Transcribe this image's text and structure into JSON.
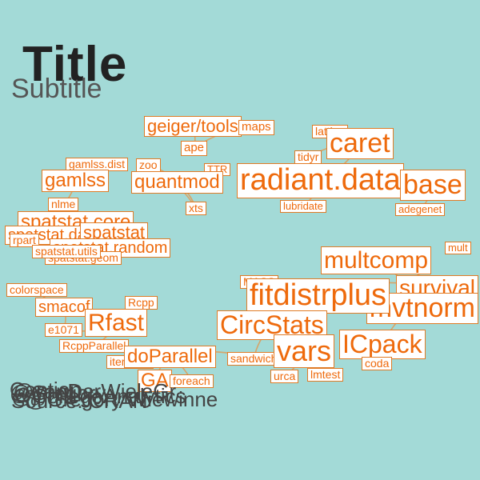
{
  "title": "Title",
  "subtitle": "Subtitle",
  "captions": [
    {
      "text": "@Gregory Wiewinne"
    },
    {
      "text": "@Gregory"
    },
    {
      "text": "Caption"
    },
    {
      "text": "@CollegeAnalytics"
    },
    {
      "text": "@vanDerWieleGr"
    },
    {
      "text": "Source: CRAN"
    }
  ],
  "colors": {
    "background": "#a3dad7",
    "node_border": "#e07b26",
    "node_text": "#ee6a0c",
    "edge": "#e09a55"
  },
  "nodes": [
    {
      "id": "geigertools",
      "label": "geiger/tools"
    },
    {
      "id": "maps",
      "label": "maps"
    },
    {
      "id": "ape",
      "label": "ape"
    },
    {
      "id": "lattice",
      "label": "lattice"
    },
    {
      "id": "caret",
      "label": "caret"
    },
    {
      "id": "tidyr",
      "label": "tidyr"
    },
    {
      "id": "gamlssdist",
      "label": "gamlss.dist"
    },
    {
      "id": "zoo",
      "label": "zoo"
    },
    {
      "id": "ttr",
      "label": "TTR"
    },
    {
      "id": "gamlss",
      "label": "gamlss"
    },
    {
      "id": "quantmod",
      "label": "quantmod"
    },
    {
      "id": "radiantdata",
      "label": "radiant.data"
    },
    {
      "id": "base",
      "label": "base"
    },
    {
      "id": "nlme",
      "label": "nlme"
    },
    {
      "id": "xts",
      "label": "xts"
    },
    {
      "id": "lubridate",
      "label": "lubridate"
    },
    {
      "id": "adegenet",
      "label": "adegenet"
    },
    {
      "id": "spatstatcore",
      "label": "spatstat.core"
    },
    {
      "id": "spatstatdata",
      "label": "spatstat.data"
    },
    {
      "id": "spatstat",
      "label": "spatstat"
    },
    {
      "id": "rpart",
      "label": "rpart"
    },
    {
      "id": "spatstatrandom",
      "label": "spatstat.random"
    },
    {
      "id": "spatstatgeom",
      "label": "spatstat.geom"
    },
    {
      "id": "spatstatutils",
      "label": "spatstat.utils"
    },
    {
      "id": "mult",
      "label": "mult"
    },
    {
      "id": "multcomp",
      "label": "multcomp"
    },
    {
      "id": "survival",
      "label": "survival"
    },
    {
      "id": "mvtnorm",
      "label": "mvtnorm"
    },
    {
      "id": "colorspace",
      "label": "colorspace"
    },
    {
      "id": "smacof",
      "label": "smacof"
    },
    {
      "id": "rcpp",
      "label": "Rcpp"
    },
    {
      "id": "e1071",
      "label": "e1071"
    },
    {
      "id": "rfast",
      "label": "Rfast"
    },
    {
      "id": "rcppparallel",
      "label": "RcppParallel"
    },
    {
      "id": "mass",
      "label": "MASS"
    },
    {
      "id": "fitdistrplus",
      "label": "fitdistrplus"
    },
    {
      "id": "sandwich",
      "label": "sandwich"
    },
    {
      "id": "circstats",
      "label": "CircStats"
    },
    {
      "id": "vars",
      "label": "vars"
    },
    {
      "id": "icpack",
      "label": "ICpack"
    },
    {
      "id": "coda",
      "label": "coda"
    },
    {
      "id": "iterators",
      "label": "iterators"
    },
    {
      "id": "doparallel",
      "label": "doParallel"
    },
    {
      "id": "ga",
      "label": "GA"
    },
    {
      "id": "foreach",
      "label": "foreach"
    },
    {
      "id": "urca",
      "label": "urca"
    },
    {
      "id": "lmtest",
      "label": "lmtest"
    }
  ],
  "edges": [
    [
      "geigertools",
      "ape"
    ],
    [
      "geigertools",
      "maps"
    ],
    [
      "ape",
      "maps"
    ],
    [
      "zoo",
      "quantmod"
    ],
    [
      "ttr",
      "quantmod"
    ],
    [
      "quantmod",
      "xts"
    ],
    [
      "zoo",
      "xts"
    ],
    [
      "gamlssdist",
      "gamlss"
    ],
    [
      "gamlss",
      "nlme"
    ],
    [
      "nlme",
      "spatstatcore"
    ],
    [
      "lattice",
      "caret"
    ],
    [
      "tidyr",
      "caret"
    ],
    [
      "caret",
      "radiantdata"
    ],
    [
      "radiantdata",
      "lubridate"
    ],
    [
      "radiantdata",
      "base"
    ],
    [
      "base",
      "adegenet"
    ],
    [
      "spatstatcore",
      "spatstat"
    ],
    [
      "spatstat",
      "spatstatrandom"
    ],
    [
      "spatstatrandom",
      "spatstatgeom"
    ],
    [
      "smacof",
      "colorspace"
    ],
    [
      "smacof",
      "e1071"
    ],
    [
      "rcpp",
      "rfast"
    ],
    [
      "rfast",
      "rcppparallel"
    ],
    [
      "rfast",
      "e1071"
    ],
    [
      "doparallel",
      "iterators"
    ],
    [
      "doparallel",
      "foreach"
    ],
    [
      "ga",
      "foreach"
    ],
    [
      "ga",
      "doparallel"
    ],
    [
      "doparallel",
      "sandwich"
    ],
    [
      "circstats",
      "mass"
    ],
    [
      "circstats",
      "fitdistrplus"
    ],
    [
      "fitdistrplus",
      "survival"
    ],
    [
      "multcomp",
      "mvtnorm"
    ],
    [
      "multcomp",
      "survival"
    ],
    [
      "vars",
      "urca"
    ],
    [
      "vars",
      "lmtest"
    ],
    [
      "vars",
      "sandwich"
    ],
    [
      "icpack",
      "coda"
    ],
    [
      "icpack",
      "survival"
    ],
    [
      "sandwich",
      "circstats"
    ]
  ]
}
